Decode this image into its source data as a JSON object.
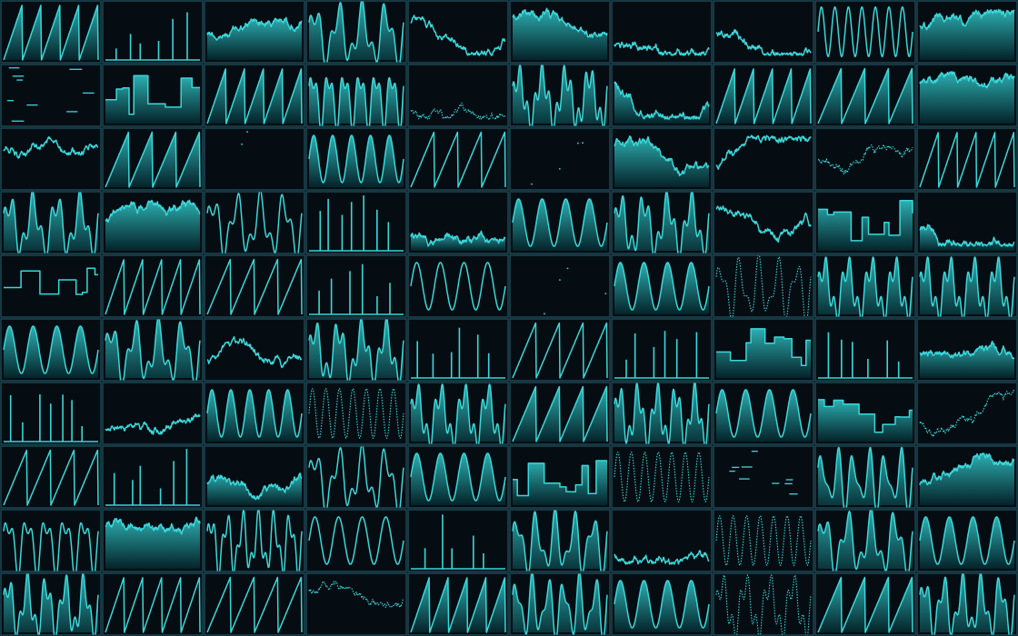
{
  "colors": {
    "background": "#03080c",
    "cell_background": "#050d13",
    "cell_border": "#1d4753",
    "trace": "#3ad7d9",
    "fill_top": "#2fb8ba",
    "fill_bottom": "#04262c"
  },
  "grid": {
    "columns": 10,
    "rows": 10
  },
  "cells": [
    "saw_fill",
    "pulses",
    "noise_fill",
    "multi_fill",
    "noise_line",
    "noise_fill",
    "noise_line",
    "noise_line",
    "sine_dense_line",
    "noise_fill",
    "dashes",
    "square_fill",
    "saw_fill",
    "multi_fill",
    "noise_line_dotted",
    "multi_fill",
    "noise_fill",
    "saw_fill",
    "saw_fill",
    "noise_fill",
    "noise_line",
    "saw_fill",
    "dots",
    "sine_fill",
    "saw_line",
    "dots",
    "noise_fill",
    "noise_line",
    "noise_line_dotted",
    "saw_line",
    "multi_fill",
    "noise_fill",
    "multi_line",
    "pulses",
    "noise_fill",
    "sine_fill",
    "multi_fill",
    "noise_line",
    "square_fill",
    "noise_fill",
    "square_line",
    "saw_line",
    "saw_line",
    "pulses",
    "sine_line",
    "dots",
    "sine_fill",
    "multi_line_dotted",
    "multi_fill",
    "multi_fill",
    "sine_fill",
    "multi_fill",
    "noise_line",
    "multi_fill",
    "pulses",
    "saw_line",
    "pulses",
    "square_fill",
    "pulses",
    "noise_fill",
    "pulses",
    "noise_line",
    "sine_fill",
    "sine_dense_line_dotted",
    "multi_fill",
    "saw_fill",
    "multi_fill",
    "sine_fill",
    "square_fill",
    "noise_line_dotted",
    "saw_line",
    "pulses",
    "noise_fill",
    "multi_line",
    "sine_fill",
    "square_fill",
    "sine_dense_line_dotted",
    "dashes",
    "multi_fill",
    "noise_fill",
    "multi_line",
    "noise_fill",
    "multi_line",
    "sine_line",
    "pulses",
    "multi_fill",
    "noise_line",
    "sine_dense_line_dotted",
    "multi_fill",
    "sine_fill",
    "multi_fill",
    "saw_line",
    "saw_line",
    "noise_line_dotted",
    "saw_fill",
    "multi_fill",
    "sine_fill",
    "multi_line_dotted",
    "saw_fill",
    "multi_fill"
  ]
}
